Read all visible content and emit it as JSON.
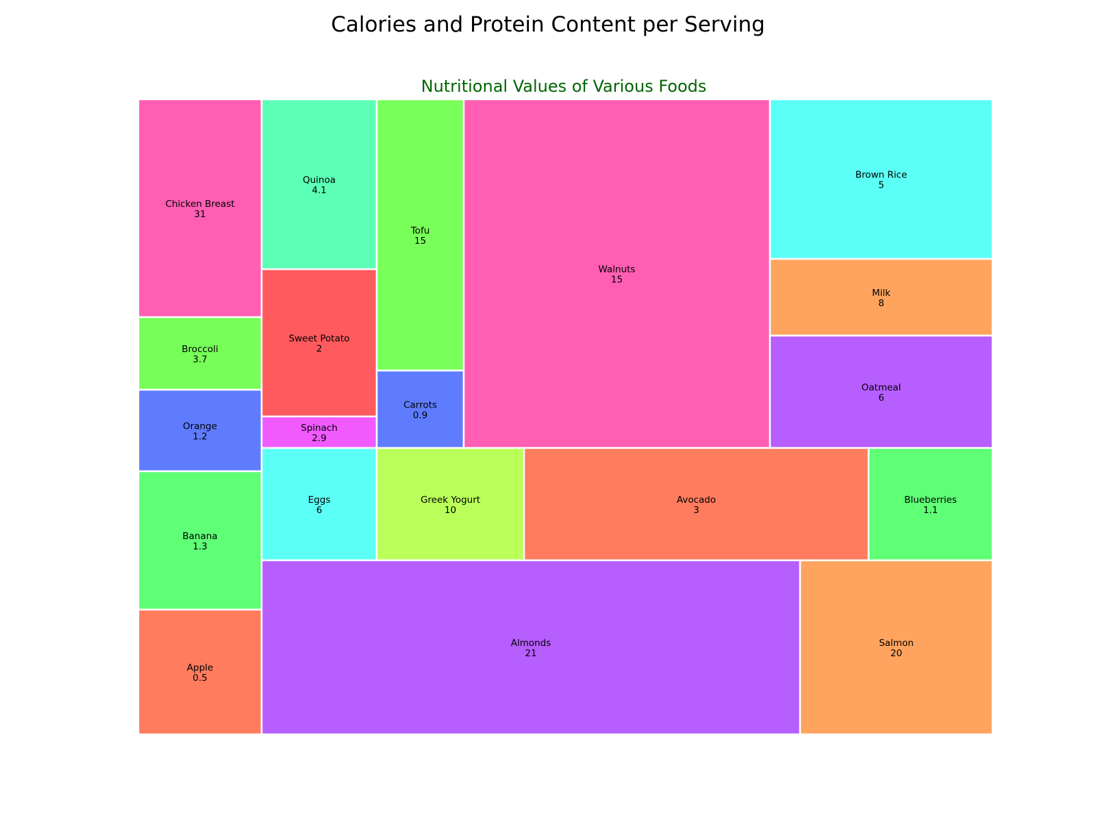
{
  "title": "Calories and Protein Content per Serving",
  "chart_data": {
    "type": "treemap",
    "subtitle": "Nutritional Values of Various Foods",
    "subtitle_color": "#006400",
    "tiles": [
      {
        "name": "Chicken Breast",
        "value": "31",
        "color": "#ff5eb3"
      },
      {
        "name": "Broccoli",
        "value": "3.7",
        "color": "#77ff59"
      },
      {
        "name": "Orange",
        "value": "1.2",
        "color": "#5f7cff"
      },
      {
        "name": "Banana",
        "value": "1.3",
        "color": "#5fff76"
      },
      {
        "name": "Apple",
        "value": "0.5",
        "color": "#ff7c5e"
      },
      {
        "name": "Quinoa",
        "value": "4.1",
        "color": "#5cffb5"
      },
      {
        "name": "Sweet Potato",
        "value": "2",
        "color": "#ff5a5e"
      },
      {
        "name": "Spinach",
        "value": "2.9",
        "color": "#f05aff"
      },
      {
        "name": "Tofu",
        "value": "15",
        "color": "#79ff5a"
      },
      {
        "name": "Carrots",
        "value": "0.9",
        "color": "#5f7cff"
      },
      {
        "name": "Walnuts",
        "value": "15",
        "color": "#ff5eb3"
      },
      {
        "name": "Brown Rice",
        "value": "5",
        "color": "#5cfff5"
      },
      {
        "name": "Milk",
        "value": "8",
        "color": "#ffa45e"
      },
      {
        "name": "Oatmeal",
        "value": "6",
        "color": "#b75eff"
      },
      {
        "name": "Eggs",
        "value": "6",
        "color": "#5cfff5"
      },
      {
        "name": "Greek Yogurt",
        "value": "10",
        "color": "#baff59"
      },
      {
        "name": "Avocado",
        "value": "3",
        "color": "#ff7c5e"
      },
      {
        "name": "Blueberries",
        "value": "1.1",
        "color": "#5fff76"
      },
      {
        "name": "Almonds",
        "value": "21",
        "color": "#b75eff"
      },
      {
        "name": "Salmon",
        "value": "20",
        "color": "#ffa45e"
      }
    ]
  }
}
